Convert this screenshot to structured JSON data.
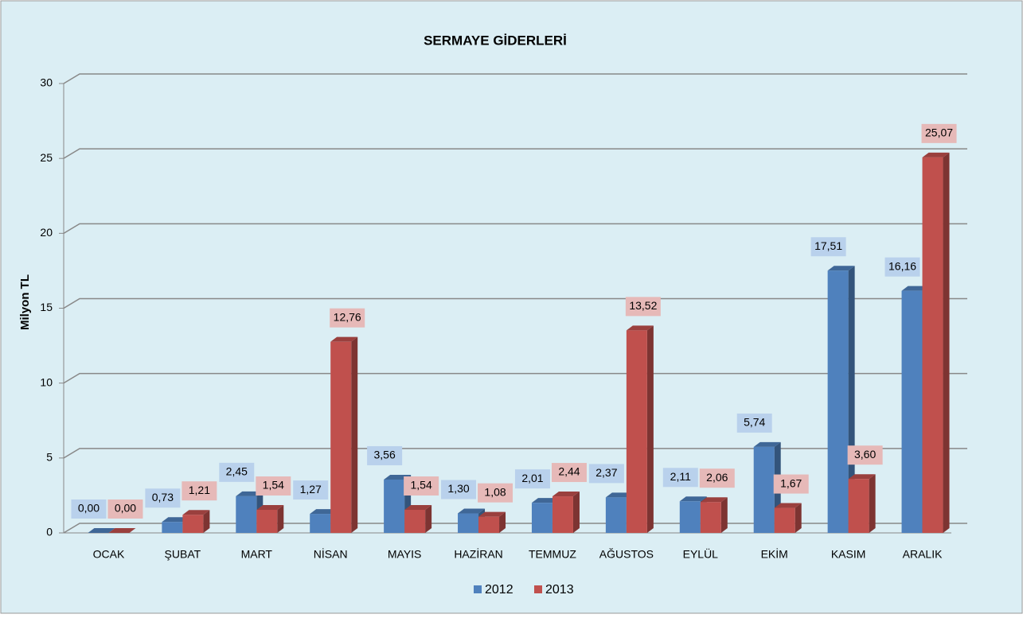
{
  "chart_data": {
    "type": "bar3d",
    "title": "SERMAYE GİDERLERİ",
    "y_label": "Milyon TL",
    "categories": [
      "OCAK",
      "ŞUBAT",
      "MART",
      "NİSAN",
      "MAYIS",
      "HAZİRAN",
      "TEMMUZ",
      "AĞUSTOS",
      "EYLÜL",
      "EKİM",
      "KASIM",
      "ARALIK"
    ],
    "series": [
      {
        "name": "2012",
        "color": "#4f81bd",
        "values": [
          0,
          0.73,
          2.45,
          1.27,
          3.56,
          1.3,
          2.01,
          2.37,
          2.11,
          5.74,
          17.51,
          16.16
        ],
        "value_labels": [
          "0,00",
          "0,73",
          "2,45",
          "1,27",
          "3,56",
          "1,30",
          "2,01",
          "2,37",
          "2,11",
          "5,74",
          "17,51",
          "16,16"
        ]
      },
      {
        "name": "2013",
        "color": "#c0504d",
        "values": [
          0,
          1.21,
          1.54,
          12.76,
          1.54,
          1.08,
          2.44,
          13.52,
          2.06,
          1.67,
          3.6,
          25.07
        ],
        "value_labels": [
          "0,00",
          "1,21",
          "1,54",
          "12,76",
          "1,54",
          "1,08",
          "2,44",
          "13,52",
          "2,06",
          "1,67",
          "3,60",
          "25,07"
        ]
      }
    ],
    "ylim": [
      0,
      30
    ],
    "yticks": [
      0,
      5,
      10,
      15,
      20,
      25,
      30
    ],
    "grid": true,
    "legend": "bottom"
  }
}
